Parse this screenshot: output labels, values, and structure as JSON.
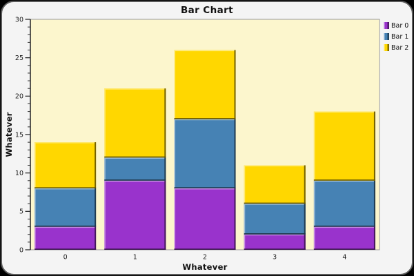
{
  "chart_data": {
    "type": "bar",
    "stacked": true,
    "title": "Bar Chart",
    "xlabel": "Whatever",
    "ylabel": "Whatever",
    "categories": [
      "0",
      "1",
      "2",
      "3",
      "4"
    ],
    "series": [
      {
        "name": "Bar 0",
        "color": "#9933CC",
        "values": [
          3,
          9,
          8,
          2,
          3
        ]
      },
      {
        "name": "Bar 1",
        "color": "#4682B4",
        "values": [
          5,
          3,
          9,
          4,
          6
        ]
      },
      {
        "name": "Bar 2",
        "color": "#FFD700",
        "values": [
          6,
          9,
          9,
          5,
          9
        ]
      }
    ],
    "stack_totals": [
      14,
      21,
      26,
      11,
      18
    ],
    "ylim": [
      0,
      30
    ],
    "y_major_ticks": [
      0,
      5,
      10,
      15,
      20,
      25,
      30
    ],
    "y_minor_tick_interval": 1,
    "legend_position": "right",
    "grid": "off",
    "colors": {
      "plot_background": "#FCF6CD",
      "outer_background": "#F4F4F4",
      "axis": "#2e2e2e",
      "text": "#141414"
    }
  }
}
